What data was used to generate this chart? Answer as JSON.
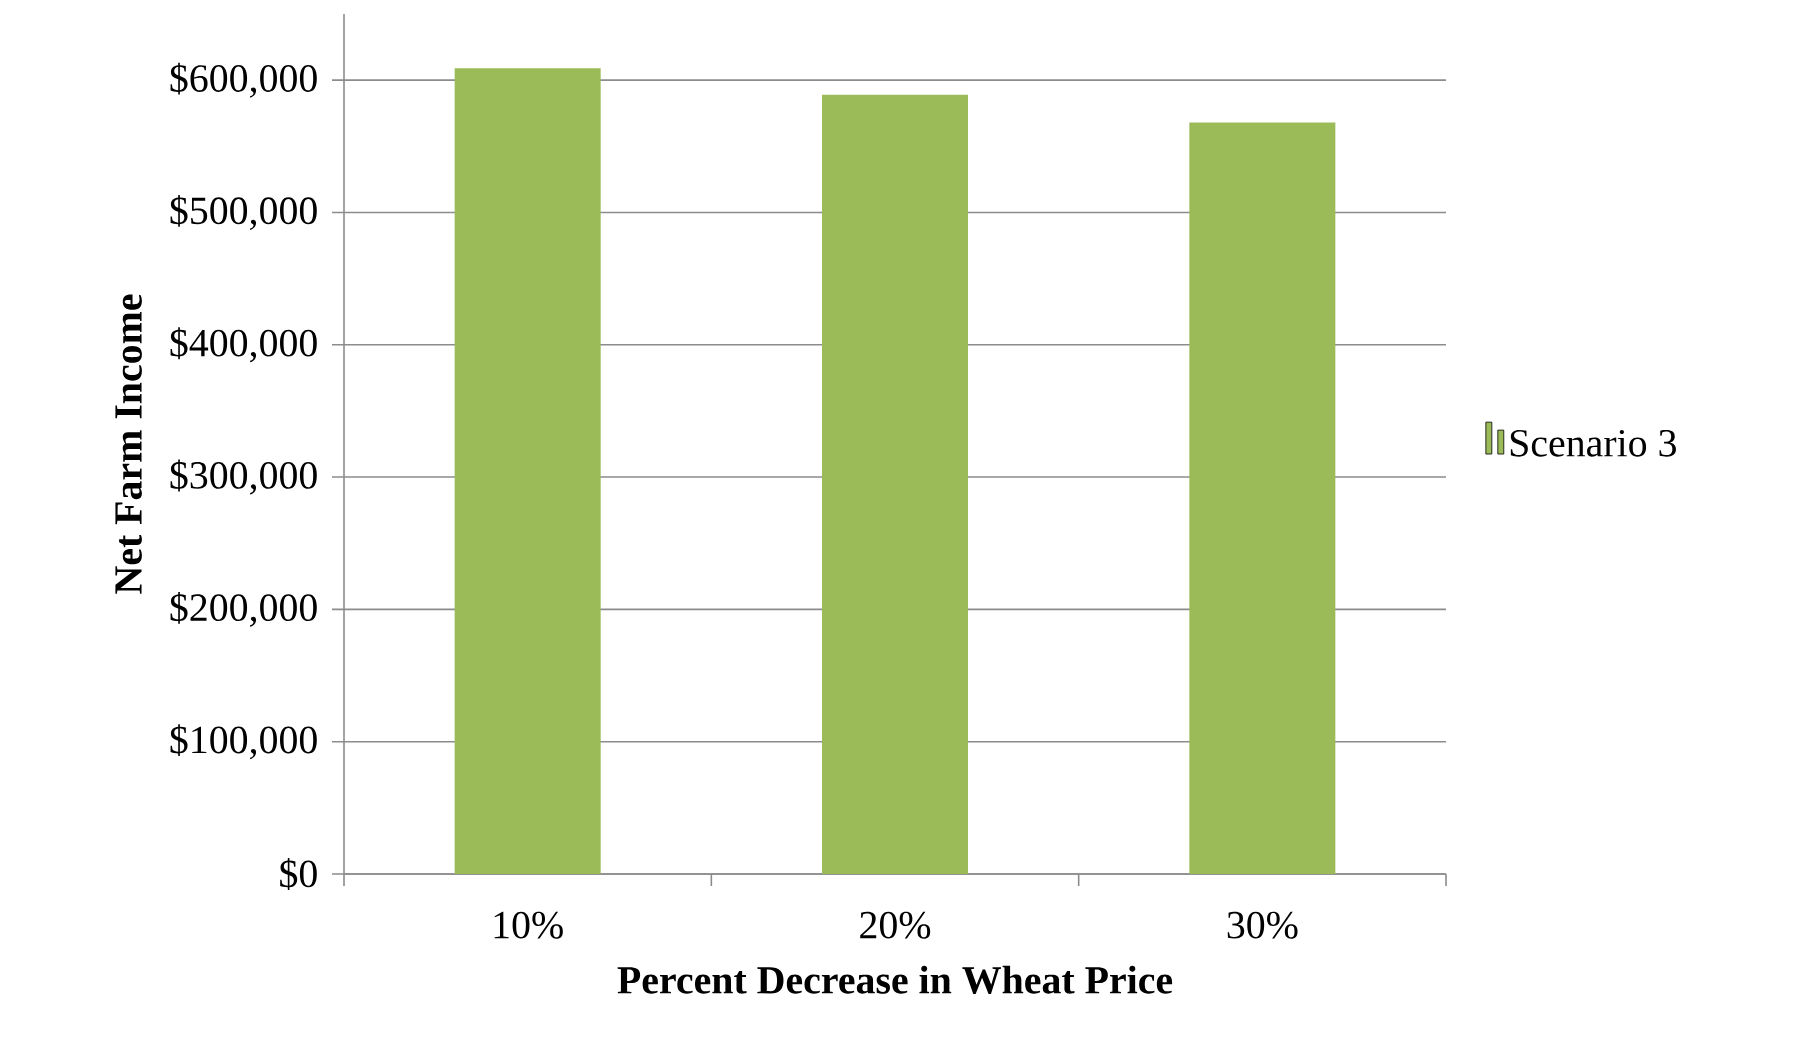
{
  "chart_data": {
    "type": "bar",
    "xlabel": "Percent Decrease in Wheat Price",
    "ylabel": "Net Farm Income",
    "categories": [
      "10%",
      "20%",
      "30%"
    ],
    "series": [
      {
        "name": "Scenario 3",
        "color": "#9bbb59",
        "values": [
          609000,
          589000,
          568000
        ]
      }
    ],
    "ylim": [
      0,
      650000
    ],
    "yticks": [
      {
        "value": 0,
        "label": "$0"
      },
      {
        "value": 100000,
        "label": "$100,000"
      },
      {
        "value": 200000,
        "label": "$200,000"
      },
      {
        "value": 300000,
        "label": "$300,000"
      },
      {
        "value": 400000,
        "label": "$400,000"
      },
      {
        "value": 500000,
        "label": "$500,000"
      },
      {
        "value": 600000,
        "label": "$600,000"
      }
    ],
    "grid": "y",
    "legend": "right"
  }
}
